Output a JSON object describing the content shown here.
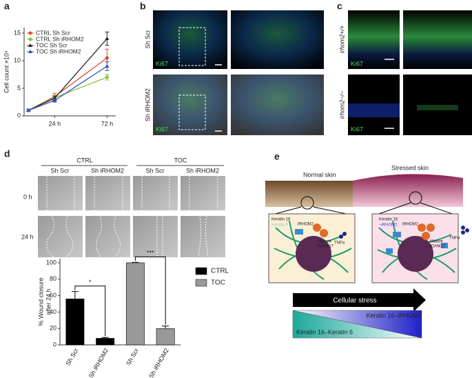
{
  "panels": {
    "a": {
      "label": "a"
    },
    "b": {
      "label": "b",
      "rows": [
        "Sh Scr",
        "Sh iRHOM2"
      ],
      "stain": [
        "Ki67",
        "Ki67"
      ]
    },
    "c": {
      "label": "c",
      "rows": [
        "irhom2+/+",
        "irhom2−/−"
      ],
      "stain": [
        "Ki67",
        "Ki67"
      ]
    },
    "d": {
      "label": "d",
      "groups": [
        "CTRL",
        "TOC"
      ],
      "columns": [
        "Sh Scr",
        "Sh iRHOM2",
        "Sh Scr",
        "Sh iRHOM2"
      ],
      "rows": [
        "0 h",
        "24 h"
      ]
    },
    "e": {
      "label": "e",
      "normal": "Normal skin",
      "stressed": "Stressed skin",
      "left_cell": {
        "keratin16": "Keratin 16",
        "keratin6": "Keratin 6",
        "irhom2": "iRHOM2",
        "mature": "Mature",
        "adam17": "ADAM17",
        "tnf": "TNFα"
      },
      "right_cell": {
        "keratin16": "Keratin 16",
        "complex": "–iRHOM2",
        "irhom2": "iRHOM2",
        "mature": "Mature",
        "adam17": "ADAM17",
        "tnf": "TNFα"
      },
      "stress": "Cellular stress",
      "k16_irhom2": "Keratin 16–iRHOM2",
      "k16_k6": "Keratin 16–Keratin 6"
    }
  },
  "chart_data": [
    {
      "type": "line",
      "x": [
        0,
        24,
        72
      ],
      "xlim": [
        -4,
        80
      ],
      "xticks": [
        {
          "value": 24,
          "label": "24 h"
        },
        {
          "value": 72,
          "label": "72 h"
        }
      ],
      "ylim": [
        0,
        16
      ],
      "yticks": [
        0,
        5,
        10,
        15
      ],
      "ylabel": "Cell count ×10⁴",
      "legend": "upper left",
      "series": [
        {
          "name": "CTRL Sh Scr",
          "color": "#e0452c",
          "marker": "circle",
          "values": [
            1,
            3.5,
            10.5
          ],
          "errors": [
            0.2,
            0.6,
            1.6
          ]
        },
        {
          "name": "CTRL Sh iRHOM2",
          "color": "#8cbf3f",
          "marker": "circle",
          "values": [
            1,
            3.3,
            7
          ],
          "errors": [
            0.2,
            0.4,
            0.5
          ]
        },
        {
          "name": "TOC Sh Scr",
          "color": "#222222",
          "marker": "triangle",
          "values": [
            1,
            3.2,
            14
          ],
          "errors": [
            0.2,
            0.4,
            1.2
          ]
        },
        {
          "name": "TOC Sh iRHOM2",
          "color": "#3050c8",
          "marker": "triangle",
          "values": [
            1,
            2.8,
            9
          ],
          "errors": [
            0.2,
            0.3,
            0.8
          ]
        }
      ]
    },
    {
      "type": "bar",
      "categories": [
        "Sh Scr",
        "Sh iRHOM2",
        "Sh Scr",
        "Sh iRHOM2"
      ],
      "ylim": [
        0,
        105
      ],
      "yticks": [
        0,
        20,
        40,
        60,
        80,
        100
      ],
      "ylabel": [
        "% Wound closure",
        "after 24 h"
      ],
      "legend": "right",
      "annotations": [
        "*",
        "***"
      ],
      "series": [
        {
          "name": "CTRL",
          "color": "#000000",
          "values": [
            56,
            8,
            null,
            null
          ],
          "errors": [
            9,
            1,
            null,
            null
          ]
        },
        {
          "name": "TOC",
          "color": "#999999",
          "values": [
            null,
            null,
            100,
            20
          ],
          "errors": [
            null,
            null,
            0.5,
            3
          ]
        }
      ]
    }
  ]
}
